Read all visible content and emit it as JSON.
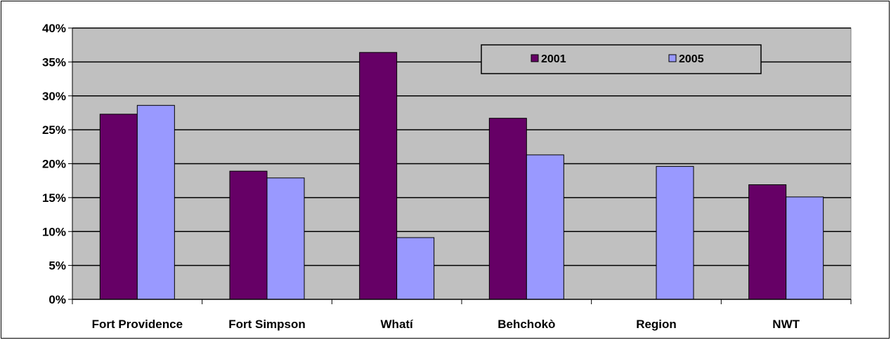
{
  "chart_data": {
    "type": "bar",
    "categories": [
      "Fort Providence",
      "Fort Simpson",
      "Whatí",
      "Behchokò",
      "Region",
      "NWT"
    ],
    "series": [
      {
        "name": "2001",
        "color": "#660066",
        "values": [
          27.3,
          18.9,
          36.4,
          26.7,
          null,
          16.9
        ]
      },
      {
        "name": "2005",
        "color": "#9999ff",
        "values": [
          28.6,
          17.9,
          9.1,
          21.3,
          19.6,
          15.1
        ]
      }
    ],
    "y_unit": "%",
    "ylim": [
      0,
      40
    ],
    "yticks": [
      0,
      5,
      10,
      15,
      20,
      25,
      30,
      35,
      40
    ],
    "ytick_labels": [
      "0%",
      "5%",
      "10%",
      "15%",
      "20%",
      "25%",
      "30%",
      "35%",
      "40%"
    ],
    "title": "",
    "xlabel": "",
    "ylabel": "",
    "grid": true,
    "legend": "top-right",
    "plot_background": "#c0c0c0"
  }
}
